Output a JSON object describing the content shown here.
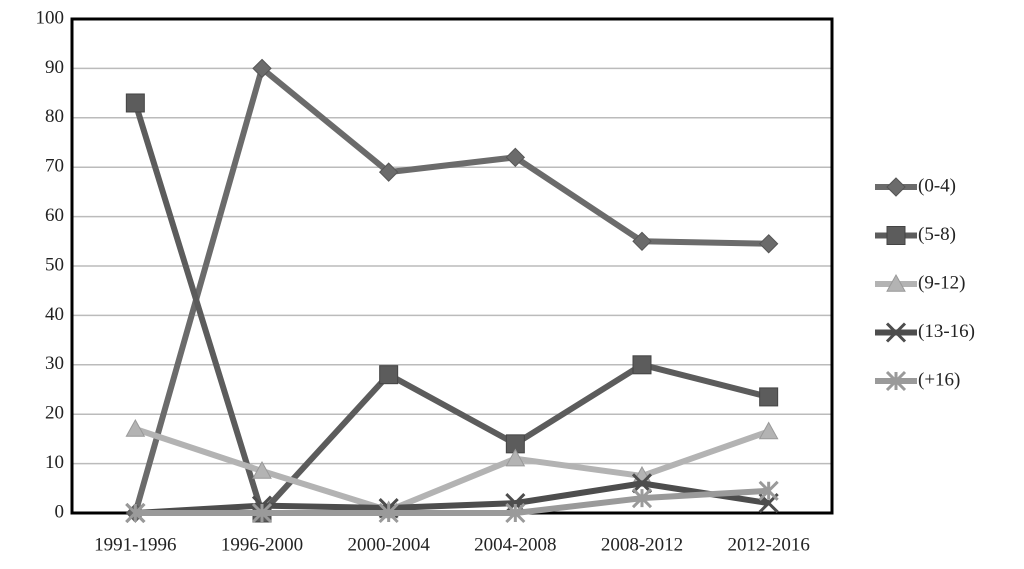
{
  "chart_data": {
    "type": "line",
    "categories": [
      "1991-1996",
      "1996-2000",
      "2000-2004",
      "2004-2008",
      "2008-2012",
      "2012-2016"
    ],
    "series": [
      {
        "name": "(0-4)",
        "color": "#6b6b6b",
        "values": [
          0,
          90,
          69,
          72,
          55,
          54.5
        ]
      },
      {
        "name": "(5-8)",
        "color": "#5c5c5c",
        "values": [
          83,
          0,
          28,
          14,
          30,
          23.5
        ]
      },
      {
        "name": "(9-12)",
        "color": "#b3b3b3",
        "values": [
          17,
          8.5,
          0.5,
          11,
          7.5,
          16.5
        ]
      },
      {
        "name": "(13-16)",
        "color": "#4d4d4d",
        "values": [
          0,
          1.5,
          1,
          2,
          6,
          2
        ]
      },
      {
        "name": "(+16)",
        "color": "#9a9a9a",
        "values": [
          0,
          0,
          0,
          0,
          3,
          4.5
        ]
      }
    ],
    "ylim": [
      0,
      100
    ],
    "yticks": [
      0,
      10,
      20,
      30,
      40,
      50,
      60,
      70,
      80,
      90,
      100
    ],
    "grid": true,
    "legend": "right"
  }
}
